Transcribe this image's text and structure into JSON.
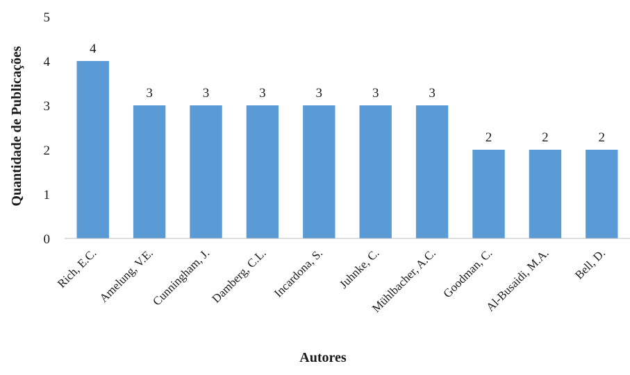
{
  "chart_data": {
    "type": "bar",
    "title": "",
    "xlabel": "Autores",
    "ylabel": "Quantidade de Publicações",
    "categories": [
      "Rich, E.C.",
      "Amelung, V.E.",
      "Cunningham, J.",
      "Damberg, C.L.",
      "Incardona, S.",
      "Juhnke, C.",
      "Mühlbacher, A.C.",
      "Goodman, C.",
      "Al-Busaidi, M.A.",
      "Bell, D."
    ],
    "values": [
      4,
      3,
      3,
      3,
      3,
      3,
      3,
      2,
      2,
      2
    ],
    "yticks": [
      0,
      1,
      2,
      3,
      4,
      5
    ],
    "ylim": [
      0,
      5
    ],
    "data_labels": true,
    "grid": false,
    "bar_color": "#5b9bd5"
  }
}
